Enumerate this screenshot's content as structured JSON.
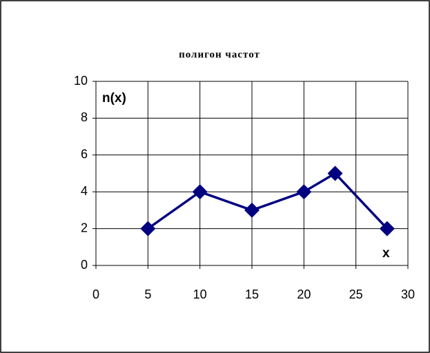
{
  "chart_data": {
    "type": "line",
    "title": "полигон частот",
    "xlabel": "x",
    "ylabel": "n(x)",
    "x": [
      5,
      10,
      15,
      20,
      23,
      28
    ],
    "series": [
      {
        "color": "#000080",
        "values": [
          2,
          4,
          3,
          4,
          5,
          2
        ]
      }
    ],
    "xlim": [
      0,
      30
    ],
    "xticks": [
      0,
      5,
      10,
      15,
      20,
      25,
      30
    ],
    "ylim": [
      0,
      10
    ],
    "yticks": [
      0,
      2,
      4,
      6,
      8,
      10
    ],
    "grid": true
  }
}
